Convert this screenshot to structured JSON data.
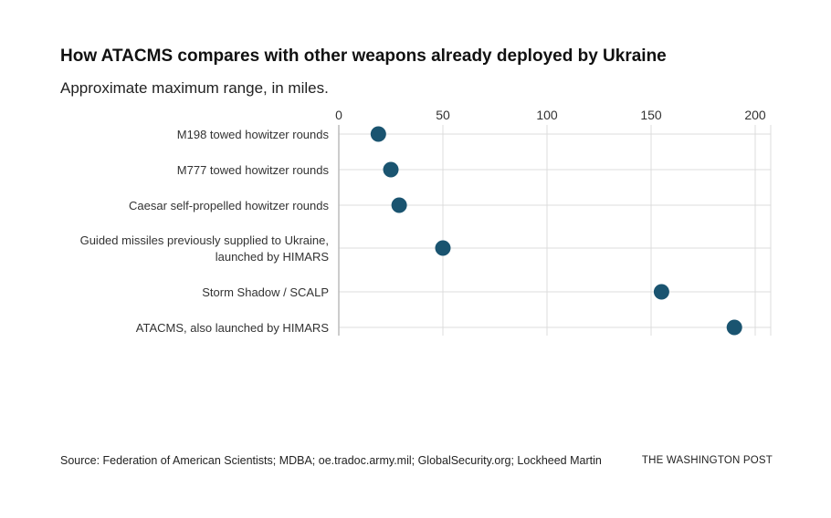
{
  "chart_data": {
    "type": "scatter",
    "title": "How ATACMS compares with other weapons already deployed by Ukraine",
    "subtitle": "Approximate maximum range, in miles.",
    "categories": [
      [
        "M198 towed howitzer rounds"
      ],
      [
        "M777 towed howitzer rounds"
      ],
      [
        "Caesar self-propelled howitzer rounds"
      ],
      [
        "Guided missiles previously supplied to Ukraine,",
        "launched by HIMARS"
      ],
      [
        "Storm Shadow / SCALP"
      ],
      [
        "ATACMS, also launched by HIMARS"
      ]
    ],
    "values": [
      19,
      25,
      29,
      50,
      155,
      190
    ],
    "xlim": [
      0,
      210
    ],
    "xticks": [
      0,
      50,
      100,
      150,
      200
    ],
    "grid": true,
    "marker_color": "#1a5470"
  },
  "footer": {
    "source": "Source: Federation of American Scientists; MDBA; oe.tradoc.army.mil; GlobalSecurity.org; Lockheed Martin",
    "credit": "THE WASHINGTON POST"
  }
}
